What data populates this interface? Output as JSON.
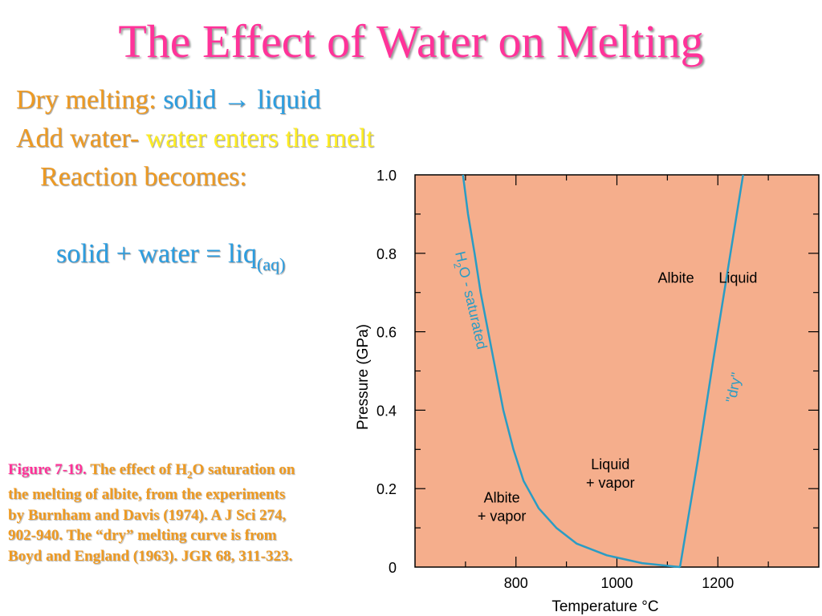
{
  "title": "The Effect of Water on Melting",
  "bullets": {
    "dry_label": "Dry melting: ",
    "dry_reaction": "solid → liquid",
    "add_label": "Add water- ",
    "add_text": "water enters the melt",
    "reaction_label": "Reaction becomes:",
    "equation": "solid + water = liq",
    "equation_subscript": "(aq)"
  },
  "caption": {
    "figure_label": "Figure 7-19.",
    "text_before": " The effect of H",
    "subscript": "2",
    "text_after": "O saturation on the melting of albite, from the experiments by Burnham and Davis (1974). A J Sci 274, 902-940. The “dry” melting curve is from Boyd and England (1963). JGR 68, 311-323."
  },
  "colors": {
    "title": "#ff3399",
    "orange_text": "#ee9a22",
    "blue_text": "#2b9de0",
    "yellow_text": "#ffee22",
    "plot_background": "#f5ae8c",
    "curve": "#2a9cc4"
  },
  "chart_data": {
    "type": "line",
    "xlabel": "Temperature °C",
    "ylabel": "Pressure (GPa)",
    "xlim": [
      600,
      1400
    ],
    "ylim": [
      0,
      1.0
    ],
    "xticks": [
      {
        "value": 800,
        "label": "800"
      },
      {
        "value": 1000,
        "label": "1000"
      },
      {
        "value": 1200,
        "label": "1200"
      }
    ],
    "yticks": [
      {
        "value": 0,
        "label": "0"
      },
      {
        "value": 0.2,
        "label": "0.2"
      },
      {
        "value": 0.4,
        "label": "0.4"
      },
      {
        "value": 0.6,
        "label": "0.6"
      },
      {
        "value": 0.8,
        "label": "0.8"
      },
      {
        "value": 1.0,
        "label": "1.0"
      }
    ],
    "series": [
      {
        "name": "H2O - saturated",
        "x": [
          1125,
          1050,
          980,
          920,
          880,
          845,
          815,
          795,
          775,
          760,
          745,
          730,
          718,
          705,
          695
        ],
        "y": [
          0.0,
          0.01,
          0.03,
          0.06,
          0.1,
          0.15,
          0.22,
          0.3,
          0.4,
          0.5,
          0.6,
          0.7,
          0.8,
          0.9,
          1.0
        ]
      },
      {
        "name": "\"dry\"",
        "x": [
          1125,
          1160,
          1190,
          1220,
          1250
        ],
        "y": [
          0.0,
          0.27,
          0.52,
          0.76,
          1.0
        ]
      }
    ],
    "annotations": [
      {
        "lines": [
          "Albite"
        ],
        "x": 1117,
        "y": 0.725
      },
      {
        "lines": [
          "Liquid"
        ],
        "x": 1240,
        "y": 0.725
      },
      {
        "lines": [
          "Liquid",
          "+ vapor"
        ],
        "x": 987,
        "y": 0.25
      },
      {
        "lines": [
          "Albite",
          "+ vapor"
        ],
        "x": 772,
        "y": 0.165
      }
    ]
  }
}
